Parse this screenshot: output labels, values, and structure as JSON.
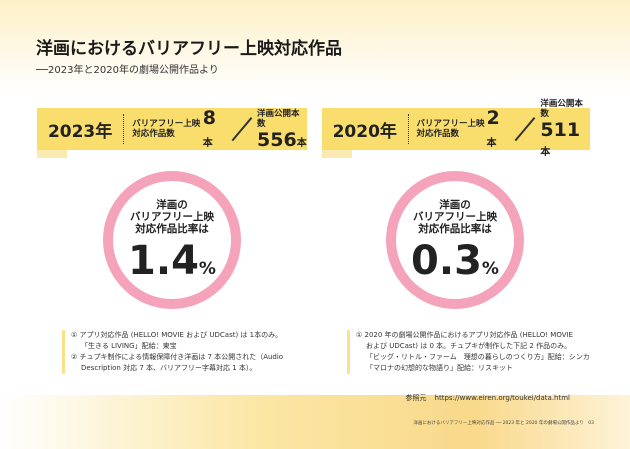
{
  "title": "洋画におけるバリアフリー上映対応作品",
  "subtitle": "──2023年と2020年の劇場公開作品より",
  "panels": [
    {
      "year": "2023年",
      "bf_label_1": "バリアフリー上映",
      "bf_label_2": "対応作品数",
      "bf_count": "8",
      "unit": "本",
      "total_label": "洋画公開本数",
      "total": "556",
      "circle_1": "洋画の",
      "circle_2": "バリアフリー上映",
      "circle_3": "対応作品比率は",
      "ratio": "1.4",
      "pct": "%",
      "notes": [
        "① アプリ対応作品 (HELLO! MOVIE および UDCast) は 1本のみ。",
        "「生きる LIVING」配給：東宝",
        "② チュプキ制作による情報保障付き洋画は 7 本公開された（Audio",
        "Description 対応 7 本、バリアフリー字幕対応 1 本）。"
      ]
    },
    {
      "year": "2020年",
      "bf_label_1": "バリアフリー上映",
      "bf_label_2": "対応作品数",
      "bf_count": "2",
      "unit": "本",
      "total_label": "洋画公開本数",
      "total": "511",
      "circle_1": "洋画の",
      "circle_2": "バリアフリー上映",
      "circle_3": "対応作品比率は",
      "ratio": "0.3",
      "pct": "%",
      "notes": [
        "① 2020 年の劇場公開作品におけるアプリ対応作品 (HELLO! MOVIE",
        "および UDCast) は 0 本。チュプキが制作した下記 2 作品のみ。",
        "「ビッグ・リトル・ファーム　理想の暮らしのつくり方」配給：シンカ",
        "「マロナの幻想的な物語り」配給：リスキット"
      ]
    }
  ],
  "reference": {
    "label": "参照元",
    "url": "https://www.eiren.org/toukei/data.html"
  },
  "footer": {
    "text": "洋画におけるバリアフリー上映対応作品 ── 2023 年と 2020 年の劇場公開作品より",
    "page": "03"
  },
  "colors": {
    "yellow": "#f9de6e",
    "pink": "#f4a3bb"
  }
}
